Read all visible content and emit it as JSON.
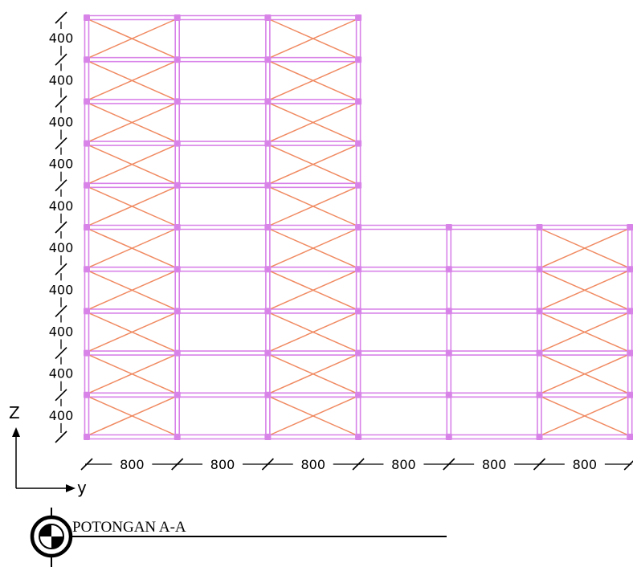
{
  "section": {
    "title": "POTONGAN A-A"
  },
  "axes": {
    "vertical_label": "Z",
    "horizontal_label": "y"
  },
  "frame": {
    "story_height_labels": [
      "400",
      "400",
      "400",
      "400",
      "400",
      "400",
      "400",
      "400",
      "400",
      "400"
    ],
    "bay_width_labels": [
      "800",
      "800",
      "800",
      "800",
      "800",
      "800"
    ],
    "stories": 10,
    "bays": 6,
    "stories_per_bay": [
      10,
      10,
      10,
      5,
      5,
      5
    ],
    "braced_bays": [
      {
        "bay": 1,
        "stories": [
          1,
          2,
          3,
          4,
          5,
          6,
          7,
          8,
          9,
          10
        ]
      },
      {
        "bay": 3,
        "stories": [
          1,
          2,
          3,
          4,
          5,
          6,
          7,
          8,
          9,
          10
        ]
      },
      {
        "bay": 6,
        "stories": [
          1,
          2,
          3,
          4,
          5
        ]
      }
    ]
  },
  "colors": {
    "frame": "#D883E8",
    "brace": "#F08A62",
    "ink": "#000000"
  }
}
